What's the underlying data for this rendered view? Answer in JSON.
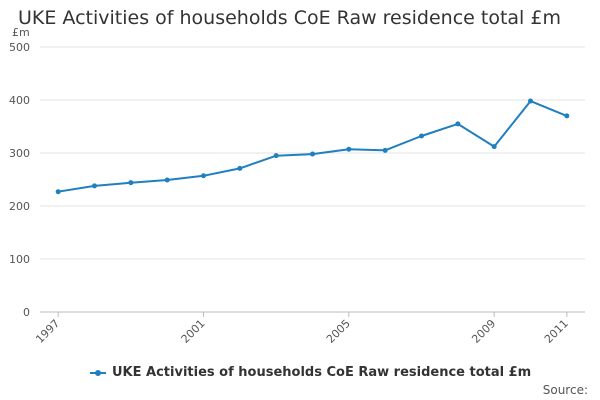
{
  "chart_data": {
    "type": "line",
    "title": "UKE Activities of households CoE Raw residence total £m",
    "ylabel": "£m",
    "xlabel": "",
    "ylim": [
      0,
      500
    ],
    "yticks": [
      0,
      100,
      200,
      300,
      400,
      500
    ],
    "xticks": [
      "1997",
      "2001",
      "2005",
      "2009",
      "2011"
    ],
    "grid": "horizontal",
    "legend_position": "bottom",
    "series": [
      {
        "name": "UKE Activities of households CoE Raw residence total £m",
        "color": "#1f7fbf",
        "x": [
          1997,
          1998,
          1999,
          2000,
          2001,
          2002,
          2003,
          2004,
          2005,
          2006,
          2007,
          2008,
          2009,
          2010,
          2011
        ],
        "values": [
          227,
          238,
          244,
          249,
          257,
          271,
          295,
          298,
          307,
          305,
          332,
          355,
          312,
          398,
          370
        ]
      }
    ]
  },
  "footer": {
    "source_label": "Source:"
  }
}
